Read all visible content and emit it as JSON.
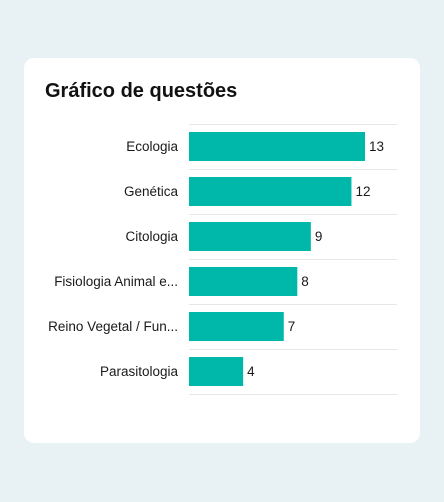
{
  "title": "Gráfico de questões",
  "colors": {
    "bar": "#00b8a9",
    "gridline": "#e6e6e6",
    "background": "#e8f1f4",
    "card": "#ffffff"
  },
  "chart_data": {
    "type": "bar",
    "orientation": "horizontal",
    "title": "Gráfico de questões",
    "categories": [
      "Ecologia",
      "Genética",
      "Citologia",
      "Fisiologia Animal e...",
      "Reino Vegetal / Fun...",
      "Parasitologia"
    ],
    "values": [
      13,
      12,
      9,
      8,
      7,
      4
    ],
    "xlim": [
      0,
      13
    ],
    "grid": "horizontal separators",
    "data_labels": true
  }
}
